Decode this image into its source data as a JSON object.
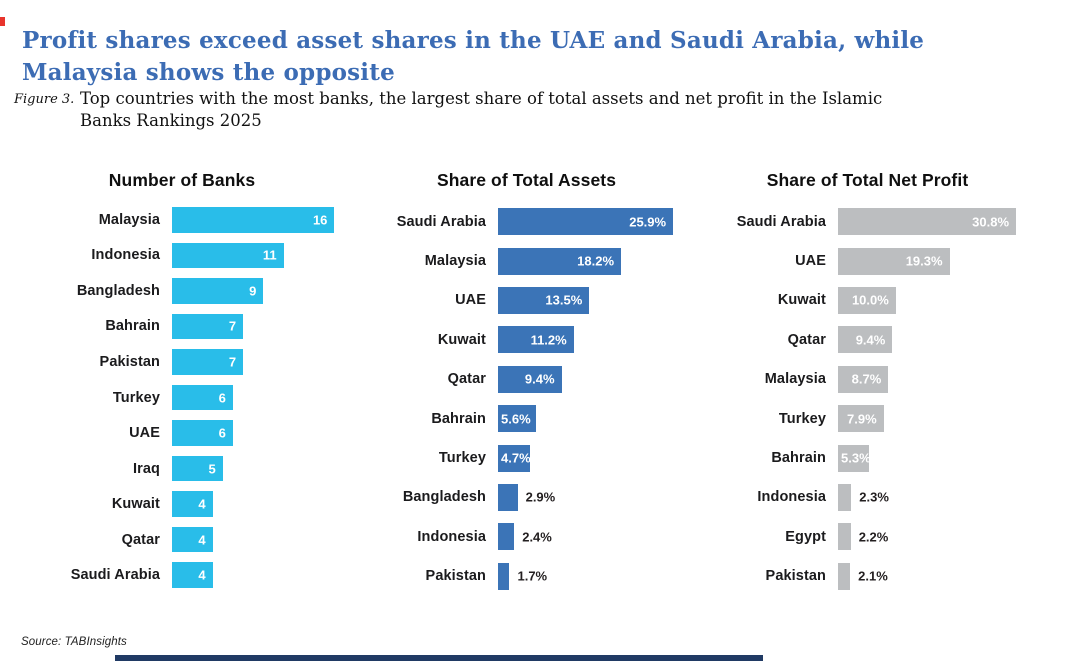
{
  "page": {
    "title": "Profit shares exceed asset shares in the UAE and Saudi Arabia, while Malaysia shows the opposite",
    "figure_label": "Figure 3.",
    "figure_caption": "Top countries with the most banks, the largest share of total assets and net profit in the Islamic Banks Rankings 2025",
    "source": "Source: TABInsights",
    "colors": {
      "title_blue": "#3c6cb4",
      "bar_cyan": "#29bde9",
      "bar_blue": "#3b74b7",
      "bar_gray": "#bcbec0",
      "red_mark": "#e8342c",
      "bottom_rule_navy": "#203a64"
    }
  },
  "chart_data": [
    {
      "type": "bar",
      "orientation": "horizontal",
      "title": "Number of Banks",
      "color": "#29bde9",
      "value_suffix": "",
      "categories": [
        "Malaysia",
        "Indonesia",
        "Bangladesh",
        "Bahrain",
        "Pakistan",
        "Turkey",
        "UAE",
        "Iraq",
        "Kuwait",
        "Qatar",
        "Saudi Arabia"
      ],
      "values": [
        16,
        11,
        9,
        7,
        7,
        6,
        6,
        5,
        4,
        4,
        4
      ],
      "value_labels": [
        "16",
        "11",
        "9",
        "7",
        "7",
        "6",
        "6",
        "5",
        "4",
        "4",
        "4"
      ],
      "xlim": [
        0,
        16.6
      ],
      "grid": false,
      "legend": "none"
    },
    {
      "type": "bar",
      "orientation": "horizontal",
      "title": "Share of Total Assets",
      "color": "#3b74b7",
      "value_suffix": "%",
      "categories": [
        "Saudi Arabia",
        "Malaysia",
        "UAE",
        "Kuwait",
        "Qatar",
        "Bahrain",
        "Turkey",
        "Bangladesh",
        "Indonesia",
        "Pakistan"
      ],
      "values": [
        25.9,
        18.2,
        13.5,
        11.2,
        9.4,
        5.6,
        4.7,
        2.9,
        2.4,
        1.7
      ],
      "value_labels": [
        "25.9%",
        "18.2%",
        "13.5%",
        "11.2%",
        "9.4%",
        "5.6%",
        "4.7%",
        "2.9%",
        "2.4%",
        "1.7%"
      ],
      "xlim": [
        0,
        27.4
      ],
      "grid": false,
      "legend": "none"
    },
    {
      "type": "bar",
      "orientation": "horizontal",
      "title": "Share of Total Net Profit",
      "color": "#bcbec0",
      "value_suffix": "%",
      "categories": [
        "Saudi Arabia",
        "UAE",
        "Kuwait",
        "Qatar",
        "Malaysia",
        "Turkey",
        "Bahrain",
        "Indonesia",
        "Egypt",
        "Pakistan"
      ],
      "values": [
        30.8,
        19.3,
        10.0,
        9.4,
        8.7,
        7.9,
        5.3,
        2.3,
        2.2,
        2.1
      ],
      "value_labels": [
        "30.8%",
        "19.3%",
        "10.0%",
        "9.4%",
        "8.7%",
        "7.9%",
        "5.3%",
        "2.3%",
        "2.2%",
        "2.1%"
      ],
      "xlim": [
        0,
        32
      ],
      "grid": false,
      "legend": "none"
    }
  ]
}
